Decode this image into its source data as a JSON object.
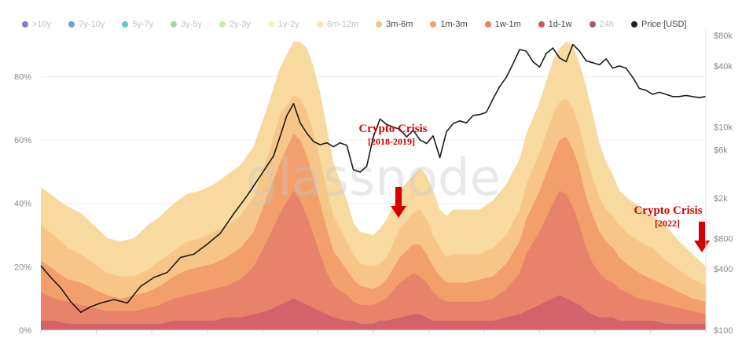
{
  "chart_data": {
    "type": "area",
    "stacked": true,
    "watermark": "glassnode",
    "legend": [
      {
        "label": ">10y",
        "color": "#5b4fb4",
        "faded": true
      },
      {
        "label": "7y-10y",
        "color": "#3b7fc0",
        "faded": true
      },
      {
        "label": "5y-7y",
        "color": "#2fb3a9",
        "faded": true
      },
      {
        "label": "3y-5y",
        "color": "#79c98c",
        "faded": true
      },
      {
        "label": "2y-3y",
        "color": "#b6e38c",
        "faded": true
      },
      {
        "label": "1y-2y",
        "color": "#f5eea0",
        "faded": true
      },
      {
        "label": "6m-12m",
        "color": "#fad79a",
        "faded": true
      },
      {
        "label": "3m-6m",
        "color": "#f7c27c",
        "faded": false
      },
      {
        "label": "1m-3m",
        "color": "#f3a263",
        "faded": false
      },
      {
        "label": "1w-1m",
        "color": "#ec7d56",
        "faded": false
      },
      {
        "label": "1d-1w",
        "color": "#d2545e",
        "faded": false
      },
      {
        "label": "24h",
        "color": "#8b1f3f",
        "faded": true
      },
      {
        "label": "Price [USD]",
        "color": "#222222",
        "faded": false
      }
    ],
    "y_left": {
      "ticks": [
        "0%",
        "20%",
        "40%",
        "60%",
        "80%"
      ],
      "ylim": [
        0,
        93
      ]
    },
    "y_right": {
      "scale": "log",
      "ticks": [
        "$100",
        "$400",
        "$800",
        "$2k",
        "$6k",
        "$10k",
        "$40k",
        "$80k"
      ],
      "tick_values": [
        100,
        400,
        800,
        2000,
        6000,
        10000,
        40000,
        80000
      ],
      "ylim": [
        100,
        80000
      ]
    },
    "x_range": [
      0,
      100
    ],
    "series": [
      {
        "name": "3m-6m",
        "color": "#f8d9a0",
        "x": [
          0,
          2,
          4,
          6,
          8,
          10,
          12,
          14,
          16,
          18,
          20,
          22,
          24,
          26,
          28,
          30,
          32,
          34,
          36,
          38,
          39,
          40,
          41,
          42,
          43,
          44,
          46,
          47,
          48,
          50,
          51,
          52,
          54,
          56,
          57,
          58,
          59,
          60,
          61,
          62,
          64,
          66,
          68,
          70,
          72,
          73,
          75,
          77,
          78,
          79,
          80,
          81,
          82,
          83,
          84,
          85,
          86,
          87,
          88,
          90,
          92,
          94,
          96,
          98,
          100
        ],
        "values": [
          45,
          42,
          39,
          37,
          33,
          29,
          28,
          29,
          33,
          36,
          40,
          43,
          44,
          46,
          49,
          52,
          58,
          70,
          83,
          91,
          91,
          89,
          83,
          75,
          64,
          53,
          41,
          34,
          31,
          30,
          32,
          35,
          44,
          49,
          51,
          49,
          44,
          38,
          36,
          38,
          38,
          38,
          41,
          46,
          54,
          62,
          72,
          85,
          89,
          91,
          90,
          84,
          77,
          68,
          59,
          53,
          49,
          44,
          42,
          39,
          36,
          33,
          28,
          24,
          20
        ]
      },
      {
        "name": "1m-3m",
        "color": "#f8c588",
        "x": [
          0,
          2,
          4,
          6,
          8,
          10,
          12,
          14,
          16,
          18,
          20,
          22,
          24,
          26,
          28,
          30,
          32,
          34,
          36,
          38,
          39,
          40,
          41,
          42,
          43,
          44,
          46,
          47,
          48,
          50,
          51,
          52,
          54,
          56,
          57,
          58,
          59,
          60,
          61,
          62,
          64,
          66,
          68,
          70,
          72,
          73,
          75,
          77,
          78,
          79,
          80,
          81,
          82,
          83,
          84,
          85,
          86,
          87,
          88,
          90,
          92,
          94,
          96,
          98,
          100
        ],
        "values": [
          33,
          30,
          26,
          24,
          21,
          18,
          17,
          17,
          19,
          22,
          25,
          28,
          29,
          31,
          33,
          36,
          42,
          54,
          68,
          74,
          73,
          69,
          62,
          54,
          44,
          36,
          28,
          24,
          21,
          20,
          21,
          23,
          32,
          37,
          38,
          35,
          30,
          26,
          23,
          24,
          24,
          24,
          26,
          30,
          38,
          46,
          56,
          68,
          72,
          73,
          70,
          64,
          55,
          48,
          42,
          38,
          36,
          33,
          31,
          28,
          26,
          22,
          19,
          16,
          14
        ]
      },
      {
        "name": "1w-1m",
        "color": "#f29f6c",
        "x": [
          0,
          2,
          4,
          6,
          8,
          10,
          12,
          14,
          16,
          18,
          20,
          22,
          24,
          26,
          28,
          30,
          32,
          34,
          36,
          38,
          39,
          40,
          41,
          42,
          43,
          44,
          46,
          47,
          48,
          50,
          51,
          52,
          54,
          56,
          57,
          58,
          59,
          60,
          61,
          62,
          64,
          66,
          68,
          70,
          72,
          73,
          75,
          77,
          78,
          79,
          80,
          81,
          82,
          83,
          84,
          85,
          86,
          87,
          88,
          90,
          92,
          94,
          96,
          98,
          100
        ],
        "values": [
          22,
          19,
          16,
          15,
          13,
          11,
          10,
          11,
          12,
          14,
          17,
          19,
          20,
          21,
          23,
          26,
          31,
          42,
          53,
          62,
          60,
          55,
          48,
          40,
          32,
          25,
          19,
          16,
          14,
          13,
          14,
          16,
          23,
          27,
          27,
          24,
          20,
          17,
          15,
          15,
          15,
          16,
          17,
          21,
          28,
          35,
          44,
          55,
          60,
          61,
          57,
          51,
          42,
          36,
          31,
          28,
          26,
          23,
          21,
          18,
          16,
          14,
          12,
          10,
          9
        ]
      },
      {
        "name": "1d-1w",
        "color": "#e9826a",
        "x": [
          0,
          2,
          4,
          6,
          8,
          10,
          12,
          14,
          16,
          18,
          20,
          22,
          24,
          26,
          28,
          30,
          32,
          34,
          36,
          38,
          39,
          40,
          41,
          42,
          43,
          44,
          46,
          47,
          48,
          50,
          51,
          52,
          54,
          56,
          57,
          58,
          59,
          60,
          61,
          62,
          64,
          66,
          68,
          70,
          72,
          73,
          75,
          77,
          78,
          79,
          80,
          81,
          82,
          83,
          84,
          85,
          86,
          87,
          88,
          90,
          92,
          94,
          96,
          98,
          100
        ],
        "values": [
          12,
          10,
          9,
          8,
          7,
          6,
          6,
          6,
          7,
          8,
          10,
          11,
          12,
          13,
          14,
          16,
          20,
          28,
          37,
          44,
          41,
          36,
          30,
          24,
          18,
          14,
          11,
          9,
          8,
          8,
          9,
          10,
          15,
          18,
          17,
          15,
          12,
          10,
          9,
          9,
          9,
          9,
          10,
          13,
          18,
          24,
          31,
          40,
          44,
          43,
          39,
          33,
          26,
          21,
          18,
          16,
          15,
          13,
          12,
          10,
          9,
          8,
          7,
          6,
          5
        ]
      },
      {
        "name": "24h",
        "color": "#d4626b",
        "x": [
          0,
          2,
          4,
          6,
          8,
          10,
          12,
          14,
          16,
          18,
          20,
          22,
          24,
          26,
          28,
          30,
          32,
          34,
          36,
          38,
          39,
          40,
          41,
          42,
          43,
          44,
          46,
          47,
          48,
          50,
          51,
          52,
          54,
          56,
          57,
          58,
          59,
          60,
          61,
          62,
          64,
          66,
          68,
          70,
          72,
          73,
          75,
          77,
          78,
          79,
          80,
          81,
          82,
          83,
          84,
          85,
          86,
          87,
          88,
          90,
          92,
          94,
          96,
          98,
          100
        ],
        "values": [
          3,
          3,
          2,
          2,
          2,
          2,
          2,
          2,
          2,
          2,
          3,
          3,
          3,
          3,
          4,
          4,
          5,
          6,
          8,
          10,
          9,
          8,
          7,
          6,
          5,
          4,
          3,
          3,
          2,
          2,
          3,
          3,
          4,
          5,
          5,
          4,
          3,
          3,
          3,
          3,
          3,
          3,
          3,
          4,
          5,
          6,
          8,
          10,
          11,
          10,
          9,
          8,
          6,
          5,
          4,
          4,
          4,
          3,
          3,
          3,
          3,
          2,
          2,
          2,
          2
        ]
      },
      {
        "name": "Price [USD]",
        "color": "#1a1a1a",
        "axis": "right",
        "x": [
          0,
          1.5,
          3,
          4.5,
          6,
          7.5,
          9,
          11,
          13,
          15,
          17,
          19,
          21,
          23,
          25,
          27,
          29,
          31,
          33,
          35,
          36,
          37,
          38,
          39,
          40,
          41,
          42,
          43,
          44,
          45,
          46,
          47,
          48,
          49,
          50,
          51,
          52,
          53,
          54,
          55,
          56,
          57,
          58,
          59,
          60,
          61,
          62,
          63,
          64,
          65,
          66,
          67,
          68,
          69,
          70,
          71,
          72,
          73,
          74,
          75,
          76,
          77,
          78,
          79,
          80,
          81,
          82,
          83,
          84,
          85,
          86,
          87,
          88,
          89,
          90,
          91,
          92,
          93,
          94,
          95,
          96,
          97,
          98,
          99,
          100
        ],
        "values": [
          430,
          330,
          260,
          190,
          150,
          170,
          185,
          200,
          185,
          270,
          330,
          370,
          520,
          560,
          700,
          900,
          1400,
          2100,
          3300,
          5200,
          8200,
          13000,
          17000,
          11000,
          8700,
          7200,
          6700,
          7000,
          6400,
          7000,
          6600,
          3800,
          3600,
          4100,
          8000,
          12000,
          10600,
          10000,
          9500,
          8000,
          9300,
          7500,
          6900,
          8200,
          5000,
          9000,
          10800,
          11500,
          11000,
          13000,
          13300,
          14000,
          19000,
          25000,
          31000,
          42000,
          58000,
          56000,
          44000,
          39000,
          53000,
          60000,
          48000,
          44000,
          65000,
          56000,
          45000,
          43000,
          41000,
          47000,
          38000,
          40000,
          38000,
          31000,
          24000,
          23000,
          21000,
          22000,
          21000,
          20000,
          20000,
          20500,
          20000,
          19500,
          20000
        ]
      }
    ],
    "annotations": [
      {
        "text": "Crypto Crisis",
        "text2": "[2018-2019]",
        "x": 54
      },
      {
        "text": "Crypto Crisis",
        "text2": "[2022]",
        "x": 98
      }
    ]
  }
}
